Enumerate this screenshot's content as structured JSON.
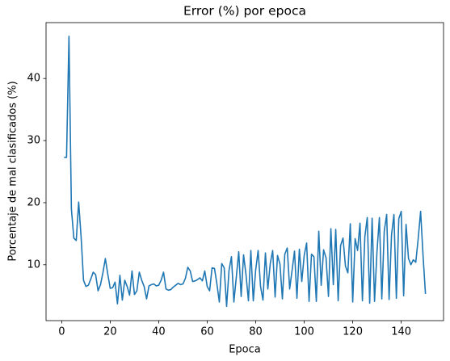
{
  "chart_data": {
    "type": "line",
    "title": "Error (%) por epoca",
    "xlabel": "Epoca",
    "ylabel": "Porcentaje de mal clasificados (%)",
    "x": [
      1,
      2,
      3,
      4,
      5,
      6,
      7,
      8,
      9,
      10,
      11,
      12,
      13,
      14,
      15,
      16,
      17,
      18,
      19,
      20,
      21,
      22,
      23,
      24,
      25,
      26,
      27,
      28,
      29,
      30,
      31,
      32,
      33,
      34,
      35,
      36,
      37,
      38,
      39,
      40,
      41,
      42,
      43,
      44,
      45,
      46,
      47,
      48,
      49,
      50,
      51,
      52,
      53,
      54,
      55,
      56,
      57,
      58,
      59,
      60,
      61,
      62,
      63,
      64,
      65,
      66,
      67,
      68,
      69,
      70,
      71,
      72,
      73,
      74,
      75,
      76,
      77,
      78,
      79,
      80,
      81,
      82,
      83,
      84,
      85,
      86,
      87,
      88,
      89,
      90,
      91,
      92,
      93,
      94,
      95,
      96,
      97,
      98,
      99,
      100,
      101,
      102,
      103,
      104,
      105,
      106,
      107,
      108,
      109,
      110,
      111,
      112,
      113,
      114,
      115,
      116,
      117,
      118,
      119,
      120,
      121,
      122,
      123,
      124,
      125,
      126,
      127,
      128,
      129,
      130,
      131,
      132,
      133,
      134,
      135,
      136,
      137,
      138,
      139,
      140,
      141,
      142,
      143,
      144,
      145,
      146,
      147,
      148,
      149,
      150
    ],
    "series": [
      {
        "name": "Error",
        "color": "#1f77b4",
        "values": [
          27.3,
          27.3,
          46.8,
          19,
          14.3,
          13.9,
          20.1,
          14.5,
          7.5,
          6.5,
          6.7,
          7.7,
          8.8,
          8.4,
          5.8,
          6.8,
          8.7,
          11,
          8.5,
          6.2,
          6.3,
          7.2,
          3.7,
          8.3,
          4.3,
          7.5,
          6.5,
          5.1,
          9,
          5.2,
          5.8,
          8.8,
          7.5,
          6.5,
          4.5,
          6.6,
          6.8,
          6.9,
          6.6,
          6.7,
          7.5,
          8.8,
          6.1,
          5.9,
          6.0,
          6.4,
          6.7,
          7.0,
          6.8,
          6.9,
          7.8,
          9.6,
          9.0,
          7.3,
          7.4,
          7.6,
          7.9,
          7.4,
          9.0,
          6.5,
          5.8,
          9.5,
          9.4,
          6.9,
          4.0,
          10.2,
          9.5,
          3.3,
          9.1,
          11.3,
          4.0,
          8.0,
          12.1,
          4.9,
          11.6,
          8.4,
          4.2,
          12.3,
          4.2,
          9.2,
          12.3,
          6.5,
          4.3,
          11.9,
          6.1,
          10.2,
          12.3,
          4.8,
          11.5,
          10.1,
          4.5,
          11.7,
          12.7,
          6.1,
          9.1,
          12.2,
          4.6,
          12.5,
          7.3,
          11.5,
          13.5,
          4.1,
          11.7,
          11.3,
          4.1,
          15.4,
          6.7,
          12.4,
          11.1,
          4.9,
          15.8,
          6.8,
          15.7,
          4.2,
          13.1,
          14.3,
          9.8,
          8.7,
          16.6,
          4.0,
          14.2,
          12.3,
          16.7,
          4.2,
          14.5,
          17.6,
          3.8,
          17.5,
          4.1,
          12.1,
          17.6,
          4.5,
          15.4,
          18.1,
          4.4,
          14.8,
          18.1,
          4.6,
          17.4,
          18.6,
          5.0,
          16.5,
          11.0,
          10.0,
          10.8,
          10.4,
          14.2,
          18.6,
          11.5,
          5.3
        ]
      }
    ],
    "xlim": [
      -6.45,
      157.45
    ],
    "ylim": [
      1.0,
      49.0
    ],
    "xticks": [
      0,
      20,
      40,
      60,
      80,
      100,
      120,
      140
    ],
    "yticks": [
      10,
      20,
      30,
      40
    ],
    "grid": false
  }
}
